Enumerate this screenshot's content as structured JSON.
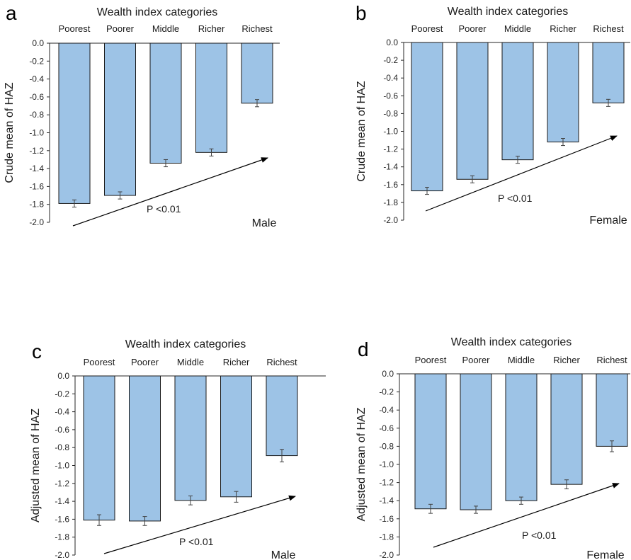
{
  "chart_data": [
    {
      "panel": "a",
      "type": "bar",
      "title": "Wealth index categories",
      "ylabel": "Crude mean of HAZ",
      "categories": [
        "Poorest",
        "Poorer",
        "Middle",
        "Richer",
        "Richest"
      ],
      "values": [
        -1.79,
        -1.7,
        -1.34,
        -1.22,
        -0.67
      ],
      "errors": [
        0.04,
        0.04,
        0.04,
        0.04,
        0.04
      ],
      "ylim": [
        -2.0,
        0.0
      ],
      "yticks": [
        "0.0",
        "-0.2",
        "-0.4",
        "-0.6",
        "-0.8",
        "-1.0",
        "-1.2",
        "-1.4",
        "-1.6",
        "-1.8",
        "-2.0"
      ],
      "annotation": "P <0.01",
      "group_label": "Male",
      "grid": false
    },
    {
      "panel": "b",
      "type": "bar",
      "title": "Wealth index categories",
      "ylabel": "Crude mean of HAZ",
      "categories": [
        "Poorest",
        "Poorer",
        "Middle",
        "Richer",
        "Richest"
      ],
      "values": [
        -1.67,
        -1.54,
        -1.32,
        -1.12,
        -0.68
      ],
      "errors": [
        0.04,
        0.04,
        0.04,
        0.04,
        0.04
      ],
      "ylim": [
        -2.0,
        0.0
      ],
      "yticks": [
        "0.0",
        "-0.2",
        "-0.4",
        "-0.6",
        "-0.8",
        "-1.0",
        "-1.2",
        "-1.4",
        "-1.6",
        "-1.8",
        "-2.0"
      ],
      "annotation": "P <0.01",
      "group_label": "Female",
      "grid": false
    },
    {
      "panel": "c",
      "type": "bar",
      "title": "Wealth index categories",
      "ylabel": "Adjusted mean of HAZ",
      "categories": [
        "Poorest",
        "Poorer",
        "Middle",
        "Richer",
        "Richest"
      ],
      "values": [
        -1.61,
        -1.62,
        -1.39,
        -1.35,
        -0.89
      ],
      "errors": [
        0.06,
        0.05,
        0.05,
        0.06,
        0.07
      ],
      "ylim": [
        -2.0,
        0.0
      ],
      "yticks": [
        "0.0",
        "-0.2",
        "-0.4",
        "-0.6",
        "-0.8",
        "-1.0",
        "-1.2",
        "-1.4",
        "-1.6",
        "-1.8",
        "-2.0"
      ],
      "annotation": "P <0.01",
      "group_label": "Male",
      "grid": false
    },
    {
      "panel": "d",
      "type": "bar",
      "title": "Wealth index categories",
      "ylabel": "Adjusted mean of HAZ",
      "categories": [
        "Poorest",
        "Poorer",
        "Middle",
        "Richer",
        "Richest"
      ],
      "values": [
        -1.49,
        -1.5,
        -1.4,
        -1.22,
        -0.8
      ],
      "errors": [
        0.05,
        0.04,
        0.04,
        0.05,
        0.06
      ],
      "ylim": [
        -2.0,
        0.0
      ],
      "yticks": [
        "0.0",
        "-0.2",
        "-0.4",
        "-0.6",
        "-0.8",
        "-1.0",
        "-1.2",
        "-1.4",
        "-1.6",
        "-1.8",
        "-2.0"
      ],
      "annotation": "P <0.01",
      "group_label": "Female",
      "grid": false
    }
  ]
}
